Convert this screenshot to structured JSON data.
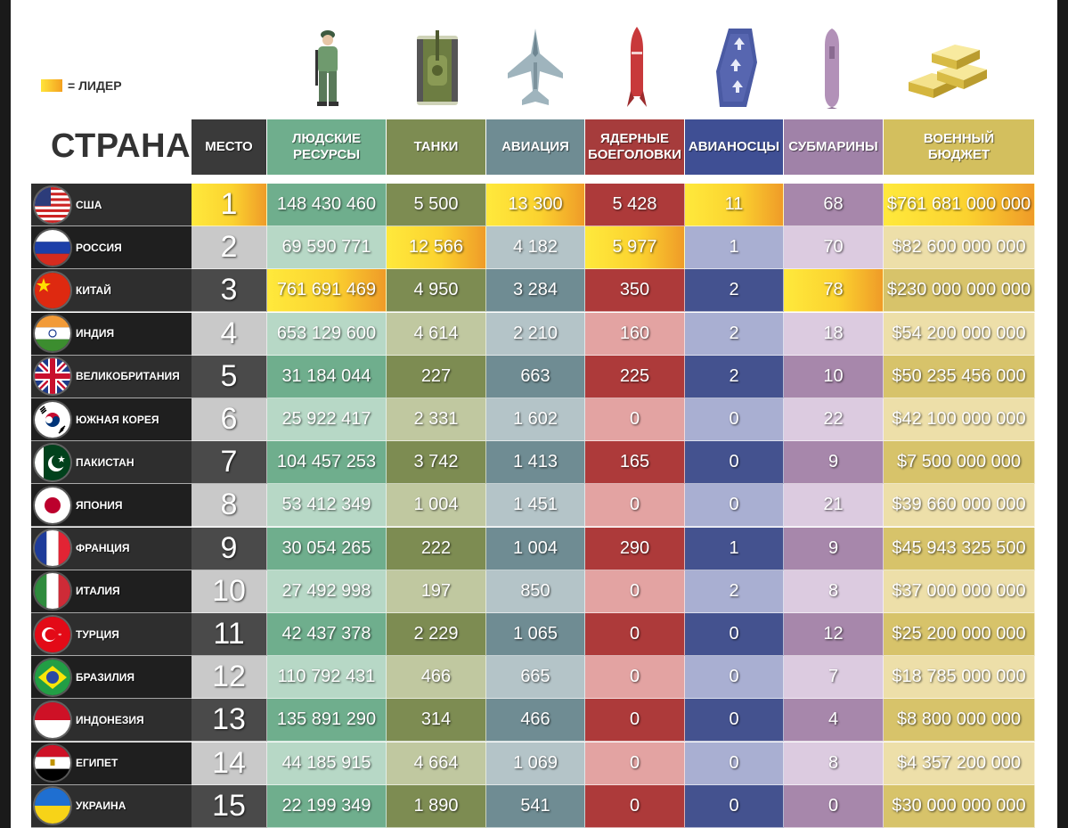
{
  "legend": {
    "label": "= ЛИДЕР",
    "colors": [
      "#ffe43a",
      "#f4a020"
    ]
  },
  "country_header": "СТРАНА",
  "columns": [
    {
      "key": "rank",
      "label": "МЕСТО",
      "icon": ""
    },
    {
      "key": "manpower",
      "label": "ЛЮДСКИЕ\nРЕСУРСЫ",
      "icon": "soldier-icon"
    },
    {
      "key": "tanks",
      "label": "ТАНКИ",
      "icon": "tank-icon"
    },
    {
      "key": "aviation",
      "label": "АВИАЦИЯ",
      "icon": "fighter-jet-icon"
    },
    {
      "key": "nukes",
      "label": "ЯДЕРНЫЕ\nБОЕГОЛОВКИ",
      "icon": "warhead-icon"
    },
    {
      "key": "carriers",
      "label": "АВИАНОСЦЫ",
      "icon": "aircraft-carrier-icon"
    },
    {
      "key": "subs",
      "label": "СУБМАРИНЫ",
      "icon": "submarine-icon"
    },
    {
      "key": "budget",
      "label": "ВОЕННЫЙ\nБЮДЖЕТ",
      "icon": "gold-bars-icon"
    }
  ],
  "rows": [
    {
      "country": "США",
      "flag": "usa",
      "rank": "1",
      "manpower": "148 430 460",
      "tanks": "5 500",
      "aviation": "13 300",
      "nukes": "5 428",
      "carriers": "11",
      "subs": "68",
      "budget": "$761 681 000 000",
      "leaders": [
        "rank",
        "aviation",
        "carriers",
        "budget"
      ]
    },
    {
      "country": "РОССИЯ",
      "flag": "russia",
      "rank": "2",
      "manpower": "69 590 771",
      "tanks": "12 566",
      "aviation": "4 182",
      "nukes": "5 977",
      "carriers": "1",
      "subs": "70",
      "budget": "$82 600 000 000",
      "leaders": [
        "tanks",
        "nukes"
      ]
    },
    {
      "country": "КИТАЙ",
      "flag": "china",
      "rank": "3",
      "manpower": "761 691 469",
      "tanks": "4 950",
      "aviation": "3 284",
      "nukes": "350",
      "carriers": "2",
      "subs": "78",
      "budget": "$230 000 000 000",
      "leaders": [
        "manpower",
        "subs"
      ]
    },
    {
      "country": "ИНДИЯ",
      "flag": "india",
      "rank": "4",
      "manpower": "653 129 600",
      "tanks": "4 614",
      "aviation": "2 210",
      "nukes": "160",
      "carriers": "2",
      "subs": "18",
      "budget": "$54 200 000 000",
      "leaders": []
    },
    {
      "country": "ВЕЛИКОБРИТАНИЯ",
      "flag": "uk",
      "rank": "5",
      "manpower": "31 184 044",
      "tanks": "227",
      "aviation": "663",
      "nukes": "225",
      "carriers": "2",
      "subs": "10",
      "budget": "$50 235 456 000",
      "leaders": []
    },
    {
      "country": "ЮЖНАЯ КОРЕЯ",
      "flag": "korea",
      "rank": "6",
      "manpower": "25 922 417",
      "tanks": "2 331",
      "aviation": "1 602",
      "nukes": "0",
      "carriers": "0",
      "subs": "22",
      "budget": "$42 100 000 000",
      "leaders": []
    },
    {
      "country": "ПАКИСТАН",
      "flag": "pakistan",
      "rank": "7",
      "manpower": "104 457 253",
      "tanks": "3 742",
      "aviation": "1 413",
      "nukes": "165",
      "carriers": "0",
      "subs": "9",
      "budget": "$7 500 000 000",
      "leaders": []
    },
    {
      "country": "ЯПОНИЯ",
      "flag": "japan",
      "rank": "8",
      "manpower": "53 412 349",
      "tanks": "1 004",
      "aviation": "1 451",
      "nukes": "0",
      "carriers": "0",
      "subs": "21",
      "budget": "$39 660 000 000",
      "leaders": []
    },
    {
      "country": "ФРАНЦИЯ",
      "flag": "france",
      "rank": "9",
      "manpower": "30 054 265",
      "tanks": "222",
      "aviation": "1 004",
      "nukes": "290",
      "carriers": "1",
      "subs": "9",
      "budget": "$45 943 325 500",
      "leaders": []
    },
    {
      "country": "ИТАЛИЯ",
      "flag": "italy",
      "rank": "10",
      "manpower": "27 492 998",
      "tanks": "197",
      "aviation": "850",
      "nukes": "0",
      "carriers": "2",
      "subs": "8",
      "budget": "$37 000 000 000",
      "leaders": []
    },
    {
      "country": "ТУРЦИЯ",
      "flag": "turkey",
      "rank": "11",
      "manpower": "42 437 378",
      "tanks": "2 229",
      "aviation": "1 065",
      "nukes": "0",
      "carriers": "0",
      "subs": "12",
      "budget": "$25 200 000 000",
      "leaders": []
    },
    {
      "country": "БРАЗИЛИЯ",
      "flag": "brazil",
      "rank": "12",
      "manpower": "110 792 431",
      "tanks": "466",
      "aviation": "665",
      "nukes": "0",
      "carriers": "0",
      "subs": "7",
      "budget": "$18 785 000 000",
      "leaders": []
    },
    {
      "country": "ИНДОНЕЗИЯ",
      "flag": "indonesia",
      "rank": "13",
      "manpower": "135 891 290",
      "tanks": "314",
      "aviation": "466",
      "nukes": "0",
      "carriers": "0",
      "subs": "4",
      "budget": "$8 800 000 000",
      "leaders": []
    },
    {
      "country": "ЕГИПЕТ",
      "flag": "egypt",
      "rank": "14",
      "manpower": "44 185 915",
      "tanks": "4 664",
      "aviation": "1 069",
      "nukes": "0",
      "carriers": "0",
      "subs": "8",
      "budget": "$4 357 200 000",
      "leaders": []
    },
    {
      "country": "УКРАИНА",
      "flag": "ukraine",
      "rank": "15",
      "manpower": "22 199 349",
      "tanks": "1 890",
      "aviation": "541",
      "nukes": "0",
      "carriers": "0",
      "subs": "0",
      "budget": "$30 000 000 000",
      "leaders": []
    }
  ],
  "colors": {
    "header": {
      "rank": "#3a3a3a",
      "manpower": "#6fae8d",
      "tanks": "#7d8c52",
      "aviation": "#6f8c93",
      "nukes": "#a63c3c",
      "carriers": "#3f4f94",
      "subs": "#a082a8",
      "budget": "#d3bf5e"
    },
    "dark": {
      "rank": "#4a4a4a",
      "manpower": "#6fae8d",
      "tanks": "#7d8c52",
      "aviation": "#6f8c93",
      "nukes": "#ad3a3a",
      "carriers": "#44528f",
      "subs": "#a787ab",
      "budget": "#d7c36a"
    },
    "light": {
      "rank": "#c9c9c9",
      "manpower": "#b7d8c6",
      "tanks": "#c0c8a0",
      "aviation": "#b4c4c8",
      "nukes": "#e3a3a2",
      "carriers": "#a9afd2",
      "subs": "#dccbe0",
      "budget": "#eddfa9"
    }
  }
}
